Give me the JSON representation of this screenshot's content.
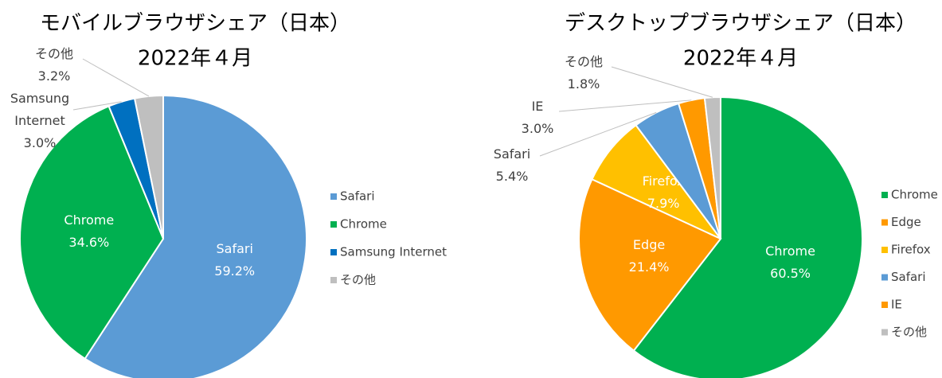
{
  "chart_data": [
    {
      "type": "pie",
      "title": "モバイルブラウザシェア（日本）",
      "subtitle": "2022年４月",
      "categories": [
        "Safari",
        "Chrome",
        "Samsung Internet",
        "その他"
      ],
      "values": [
        59.2,
        34.6,
        3.0,
        3.2
      ],
      "value_labels": [
        "59.2%",
        "34.6%",
        "3.0%",
        "3.2%"
      ],
      "colors": [
        "#5b9bd5",
        "#00b050",
        "#0070c0",
        "#bfbfbf"
      ]
    },
    {
      "type": "pie",
      "title": "デスクトップブラウザシェア（日本）",
      "subtitle": "2022年４月",
      "categories": [
        "Chrome",
        "Edge",
        "Firefox",
        "Safari",
        "IE",
        "その他"
      ],
      "values": [
        60.5,
        21.4,
        7.9,
        5.4,
        3.0,
        1.8
      ],
      "value_labels": [
        "60.5%",
        "21.4%",
        "7.9%",
        "5.4%",
        "3.0%",
        "1.8%"
      ],
      "colors": [
        "#00b050",
        "#ff9900",
        "#ffc000",
        "#5b9bd5",
        "#ff9900",
        "#bfbfbf"
      ]
    }
  ]
}
